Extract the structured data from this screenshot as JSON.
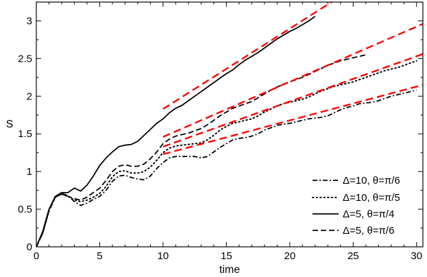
{
  "chart_data": {
    "type": "line",
    "title": "",
    "xlabel": "time",
    "ylabel": "S",
    "xlim": [
      0,
      30.5
    ],
    "ylim": [
      0,
      3.25
    ],
    "xticks": [
      "0",
      "5",
      "10",
      "15",
      "20",
      "25",
      "30"
    ],
    "yticks": [
      "0",
      "0.5",
      "1",
      "1.5",
      "2",
      "2.5",
      "3"
    ],
    "xtick_values": [
      0,
      5,
      10,
      15,
      20,
      25,
      30
    ],
    "ytick_values": [
      0,
      0.5,
      1,
      1.5,
      2,
      2.5,
      3
    ],
    "grid": false,
    "legend_position": "bottom-right",
    "series": [
      {
        "name": "Δ=10, θ=π/6",
        "style": "dashdot",
        "color": "#000000",
        "points": [
          [
            0,
            0
          ],
          [
            0.5,
            0.18
          ],
          [
            1,
            0.48
          ],
          [
            1.5,
            0.66
          ],
          [
            2,
            0.71
          ],
          [
            2.5,
            0.68
          ],
          [
            3,
            0.6
          ],
          [
            3.5,
            0.55
          ],
          [
            4,
            0.58
          ],
          [
            4.5,
            0.63
          ],
          [
            5,
            0.67
          ],
          [
            5.5,
            0.75
          ],
          [
            6,
            0.87
          ],
          [
            6.5,
            0.94
          ],
          [
            7,
            0.95
          ],
          [
            7.5,
            0.92
          ],
          [
            8,
            0.9
          ],
          [
            8.5,
            0.89
          ],
          [
            9,
            0.94
          ],
          [
            9.5,
            1.04
          ],
          [
            10,
            1.12
          ],
          [
            10.5,
            1.18
          ],
          [
            11,
            1.2
          ],
          [
            11.5,
            1.2
          ],
          [
            12,
            1.2
          ],
          [
            12.5,
            1.2
          ],
          [
            13,
            1.18
          ],
          [
            13.5,
            1.2
          ],
          [
            14,
            1.26
          ],
          [
            14.5,
            1.32
          ],
          [
            15,
            1.37
          ],
          [
            15.5,
            1.42
          ],
          [
            16,
            1.44
          ],
          [
            16.5,
            1.45
          ],
          [
            17,
            1.47
          ],
          [
            17.5,
            1.5
          ],
          [
            18,
            1.55
          ],
          [
            18.5,
            1.58
          ],
          [
            19,
            1.61
          ],
          [
            19.5,
            1.63
          ],
          [
            20,
            1.64
          ],
          [
            20.5,
            1.66
          ],
          [
            21,
            1.68
          ],
          [
            21.5,
            1.7
          ],
          [
            22,
            1.71
          ],
          [
            22.5,
            1.72
          ],
          [
            23,
            1.74
          ],
          [
            23.5,
            1.78
          ],
          [
            24,
            1.82
          ],
          [
            24.5,
            1.85
          ],
          [
            25,
            1.87
          ],
          [
            25.5,
            1.9
          ],
          [
            26,
            1.91
          ],
          [
            26.5,
            1.92
          ],
          [
            27,
            1.94
          ],
          [
            27.5,
            1.97
          ],
          [
            28,
            2.0
          ],
          [
            28.5,
            2.02
          ],
          [
            29,
            2.04
          ],
          [
            29.5,
            2.06
          ],
          [
            30,
            2.08
          ]
        ]
      },
      {
        "name": "Δ=10, θ=π/5",
        "style": "dotted",
        "color": "#000000",
        "points": [
          [
            0,
            0
          ],
          [
            0.5,
            0.18
          ],
          [
            1,
            0.48
          ],
          [
            1.5,
            0.66
          ],
          [
            2,
            0.7
          ],
          [
            2.5,
            0.67
          ],
          [
            3,
            0.62
          ],
          [
            3.5,
            0.6
          ],
          [
            4,
            0.62
          ],
          [
            4.5,
            0.66
          ],
          [
            5,
            0.71
          ],
          [
            5.5,
            0.8
          ],
          [
            6,
            0.93
          ],
          [
            6.5,
            1.0
          ],
          [
            7,
            1.01
          ],
          [
            7.5,
            0.98
          ],
          [
            8,
            0.98
          ],
          [
            8.5,
            1.0
          ],
          [
            9,
            1.06
          ],
          [
            9.5,
            1.15
          ],
          [
            10,
            1.25
          ],
          [
            10.5,
            1.31
          ],
          [
            11,
            1.34
          ],
          [
            11.5,
            1.35
          ],
          [
            12,
            1.36
          ],
          [
            12.5,
            1.37
          ],
          [
            13,
            1.38
          ],
          [
            13.5,
            1.42
          ],
          [
            14,
            1.48
          ],
          [
            14.5,
            1.55
          ],
          [
            15,
            1.6
          ],
          [
            15.5,
            1.64
          ],
          [
            16,
            1.66
          ],
          [
            16.5,
            1.68
          ],
          [
            17,
            1.7
          ],
          [
            17.5,
            1.74
          ],
          [
            18,
            1.79
          ],
          [
            18.5,
            1.83
          ],
          [
            19,
            1.87
          ],
          [
            19.5,
            1.9
          ],
          [
            20,
            1.92
          ],
          [
            20.5,
            1.94
          ],
          [
            21,
            1.96
          ],
          [
            21.5,
            1.99
          ],
          [
            22,
            2.03
          ],
          [
            22.5,
            2.07
          ],
          [
            23,
            2.1
          ],
          [
            23.5,
            2.13
          ],
          [
            24,
            2.15
          ],
          [
            24.5,
            2.17
          ],
          [
            25,
            2.19
          ],
          [
            25.5,
            2.22
          ],
          [
            26,
            2.25
          ],
          [
            26.5,
            2.28
          ],
          [
            27,
            2.31
          ],
          [
            27.5,
            2.34
          ],
          [
            28,
            2.36
          ],
          [
            28.5,
            2.38
          ],
          [
            29,
            2.41
          ],
          [
            29.5,
            2.44
          ],
          [
            30,
            2.47
          ]
        ]
      },
      {
        "name": "Δ=5, θ=π/4",
        "style": "solid",
        "color": "#000000",
        "points": [
          [
            0,
            0
          ],
          [
            0.5,
            0.2
          ],
          [
            1,
            0.5
          ],
          [
            1.5,
            0.67
          ],
          [
            2,
            0.72
          ],
          [
            2.5,
            0.72
          ],
          [
            3,
            0.78
          ],
          [
            3.5,
            0.74
          ],
          [
            4,
            0.82
          ],
          [
            4.5,
            0.94
          ],
          [
            5,
            1.08
          ],
          [
            5.5,
            1.18
          ],
          [
            6,
            1.26
          ],
          [
            6.5,
            1.33
          ],
          [
            7,
            1.35
          ],
          [
            7.5,
            1.36
          ],
          [
            8,
            1.4
          ],
          [
            8.5,
            1.48
          ],
          [
            9,
            1.56
          ],
          [
            9.5,
            1.64
          ],
          [
            10,
            1.7
          ],
          [
            10.5,
            1.78
          ],
          [
            11,
            1.84
          ],
          [
            11.5,
            1.88
          ],
          [
            12,
            1.94
          ],
          [
            12.5,
            2.0
          ],
          [
            13,
            2.06
          ],
          [
            13.5,
            2.12
          ],
          [
            14,
            2.18
          ],
          [
            14.5,
            2.24
          ],
          [
            15,
            2.3
          ],
          [
            15.5,
            2.35
          ],
          [
            16,
            2.42
          ],
          [
            16.5,
            2.48
          ],
          [
            17,
            2.53
          ],
          [
            17.5,
            2.58
          ],
          [
            18,
            2.64
          ],
          [
            18.5,
            2.7
          ],
          [
            19,
            2.76
          ],
          [
            19.5,
            2.81
          ],
          [
            20,
            2.86
          ],
          [
            20.5,
            2.9
          ],
          [
            21,
            2.95
          ],
          [
            21.5,
            3.0
          ],
          [
            22,
            3.06
          ]
        ]
      },
      {
        "name": "Δ=5, θ=π/6",
        "style": "dashed",
        "color": "#000000",
        "points": [
          [
            0,
            0
          ],
          [
            0.5,
            0.18
          ],
          [
            1,
            0.48
          ],
          [
            1.5,
            0.66
          ],
          [
            2,
            0.7
          ],
          [
            2.5,
            0.67
          ],
          [
            3,
            0.64
          ],
          [
            3.5,
            0.62
          ],
          [
            4,
            0.66
          ],
          [
            4.5,
            0.72
          ],
          [
            5,
            0.78
          ],
          [
            5.5,
            0.88
          ],
          [
            6,
            1.0
          ],
          [
            6.5,
            1.07
          ],
          [
            7,
            1.09
          ],
          [
            7.5,
            1.07
          ],
          [
            8,
            1.07
          ],
          [
            8.5,
            1.1
          ],
          [
            9,
            1.17
          ],
          [
            9.5,
            1.26
          ],
          [
            10,
            1.37
          ],
          [
            10.5,
            1.43
          ],
          [
            11,
            1.47
          ],
          [
            11.5,
            1.49
          ],
          [
            12,
            1.51
          ],
          [
            12.5,
            1.54
          ],
          [
            13,
            1.57
          ],
          [
            13.5,
            1.62
          ],
          [
            14,
            1.68
          ],
          [
            14.5,
            1.74
          ],
          [
            15,
            1.79
          ],
          [
            15.5,
            1.84
          ],
          [
            16,
            1.87
          ],
          [
            16.5,
            1.9
          ],
          [
            17,
            1.93
          ],
          [
            17.5,
            1.98
          ],
          [
            18,
            2.03
          ],
          [
            18.5,
            2.08
          ],
          [
            19,
            2.12
          ],
          [
            19.5,
            2.16
          ],
          [
            20,
            2.19
          ],
          [
            20.5,
            2.22
          ],
          [
            21,
            2.25
          ],
          [
            21.5,
            2.29
          ],
          [
            22,
            2.33
          ],
          [
            22.5,
            2.37
          ],
          [
            23,
            2.41
          ],
          [
            23.5,
            2.44
          ],
          [
            24,
            2.47
          ],
          [
            24.5,
            2.49
          ],
          [
            25,
            2.51
          ],
          [
            25.5,
            2.53
          ],
          [
            26,
            2.55
          ]
        ]
      }
    ],
    "fit_lines": [
      {
        "color": "#ff0000",
        "style": "dashed",
        "points": [
          [
            10,
            1.83
          ],
          [
            23.3,
            3.25
          ]
        ]
      },
      {
        "color": "#ff0000",
        "style": "dashed",
        "points": [
          [
            10,
            1.46
          ],
          [
            30.5,
            2.96
          ]
        ]
      },
      {
        "color": "#ff0000",
        "style": "dashed",
        "points": [
          [
            10,
            1.33
          ],
          [
            30.5,
            2.56
          ]
        ]
      },
      {
        "color": "#ff0000",
        "style": "dashed",
        "points": [
          [
            10,
            1.23
          ],
          [
            30.5,
            2.15
          ]
        ]
      }
    ]
  }
}
